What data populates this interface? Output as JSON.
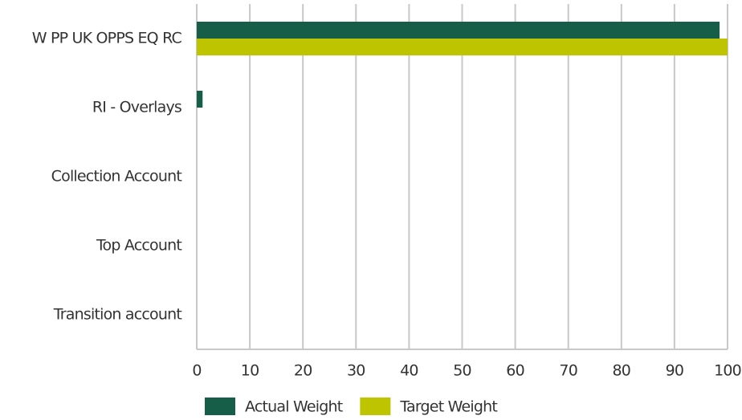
{
  "chart_data": {
    "type": "hbar",
    "categories": [
      "W PP UK OPPS EQ RC",
      "RI - Overlays",
      "Collection Account",
      "Top Account",
      "Transition account"
    ],
    "series": [
      {
        "name": "Actual Weight",
        "color": "#165e47",
        "values": [
          98.5,
          1.1,
          0,
          0,
          0
        ]
      },
      {
        "name": "Target Weight",
        "color": "#bec400",
        "values": [
          100,
          0,
          0,
          0,
          0
        ]
      }
    ],
    "xlim": [
      0,
      100
    ],
    "xticks": [
      0,
      10,
      20,
      30,
      40,
      50,
      60,
      70,
      80,
      90,
      100
    ],
    "grid": true,
    "legend": "bottom"
  }
}
